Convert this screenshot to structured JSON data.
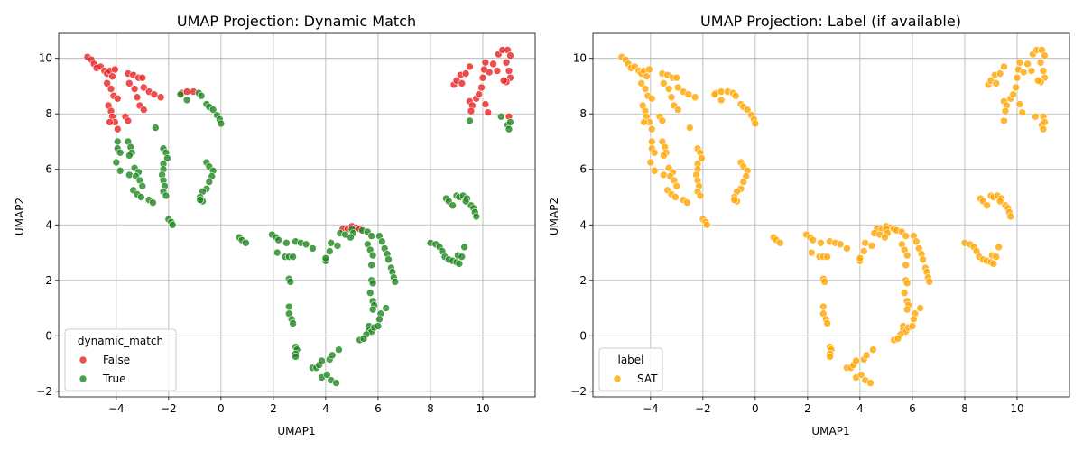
{
  "chart_data": [
    {
      "type": "scatter",
      "title": "UMAP Projection: Dynamic Match",
      "xlabel": "UMAP1",
      "ylabel": "UMAP2",
      "xlim": [
        -6.2,
        12.0
      ],
      "ylim": [
        -2.2,
        10.9
      ],
      "xticks": [
        -4,
        -2,
        0,
        2,
        4,
        6,
        8,
        10
      ],
      "yticks": [
        -2,
        0,
        2,
        4,
        6,
        8,
        10
      ],
      "grid": true,
      "legend": {
        "title": "dynamic_match",
        "position": "lower-left"
      },
      "series": [
        {
          "name": "False",
          "color": "#e82020",
          "points": [
            [
              -5.1,
              10.05
            ],
            [
              -4.95,
              9.95
            ],
            [
              -4.85,
              9.8
            ],
            [
              -4.75,
              9.65
            ],
            [
              -4.6,
              9.7
            ],
            [
              -4.45,
              9.55
            ],
            [
              -4.35,
              9.45
            ],
            [
              -4.25,
              9.55
            ],
            [
              -4.15,
              9.35
            ],
            [
              -4.05,
              9.6
            ],
            [
              -4.35,
              9.1
            ],
            [
              -4.2,
              8.9
            ],
            [
              -4.1,
              8.65
            ],
            [
              -3.95,
              8.55
            ],
            [
              -4.3,
              8.3
            ],
            [
              -4.2,
              8.1
            ],
            [
              -4.15,
              7.9
            ],
            [
              -4.05,
              7.7
            ],
            [
              -4.25,
              7.7
            ],
            [
              -3.95,
              7.45
            ],
            [
              -3.65,
              7.9
            ],
            [
              -3.55,
              7.75
            ],
            [
              -3.55,
              9.45
            ],
            [
              -3.35,
              9.4
            ],
            [
              -3.15,
              9.3
            ],
            [
              -3.0,
              9.3
            ],
            [
              -3.5,
              9.1
            ],
            [
              -3.3,
              8.9
            ],
            [
              -3.2,
              8.6
            ],
            [
              -2.95,
              8.95
            ],
            [
              -2.75,
              8.8
            ],
            [
              -2.55,
              8.7
            ],
            [
              -2.3,
              8.6
            ],
            [
              -3.1,
              8.3
            ],
            [
              -2.95,
              8.15
            ],
            [
              -1.5,
              8.75
            ],
            [
              -1.3,
              8.8
            ],
            [
              -1.05,
              8.8
            ],
            [
              8.9,
              9.05
            ],
            [
              9.0,
              9.2
            ],
            [
              9.15,
              9.4
            ],
            [
              9.35,
              9.45
            ],
            [
              9.5,
              9.7
            ],
            [
              9.2,
              9.1
            ],
            [
              9.5,
              8.45
            ],
            [
              9.6,
              8.3
            ],
            [
              9.55,
              8.1
            ],
            [
              9.75,
              8.55
            ],
            [
              9.85,
              8.7
            ],
            [
              9.95,
              8.95
            ],
            [
              10.0,
              9.3
            ],
            [
              10.05,
              9.6
            ],
            [
              10.1,
              9.85
            ],
            [
              10.25,
              9.5
            ],
            [
              10.4,
              9.8
            ],
            [
              10.55,
              9.55
            ],
            [
              10.6,
              10.15
            ],
            [
              10.75,
              10.3
            ],
            [
              10.95,
              10.3
            ],
            [
              11.05,
              10.1
            ],
            [
              10.9,
              9.85
            ],
            [
              11.0,
              9.55
            ],
            [
              11.05,
              9.3
            ],
            [
              10.9,
              9.15
            ],
            [
              10.1,
              8.35
            ],
            [
              10.2,
              8.05
            ],
            [
              10.8,
              9.2
            ],
            [
              11.0,
              7.9
            ],
            [
              4.65,
              3.85
            ],
            [
              4.85,
              3.85
            ],
            [
              5.0,
              3.95
            ],
            [
              5.15,
              3.9
            ],
            [
              5.3,
              3.85
            ]
          ]
        },
        {
          "name": "True",
          "color": "#1e861e",
          "points": [
            [
              -3.95,
              7.0
            ],
            [
              -3.95,
              6.75
            ],
            [
              -3.85,
              6.6
            ],
            [
              -4.0,
              6.25
            ],
            [
              -3.85,
              5.95
            ],
            [
              -3.55,
              7.0
            ],
            [
              -3.45,
              6.8
            ],
            [
              -3.4,
              6.6
            ],
            [
              -3.5,
              6.5
            ],
            [
              -3.3,
              6.05
            ],
            [
              -3.15,
              5.9
            ],
            [
              -3.5,
              5.8
            ],
            [
              -3.25,
              5.75
            ],
            [
              -3.1,
              5.6
            ],
            [
              -3.0,
              5.4
            ],
            [
              -3.35,
              5.25
            ],
            [
              -3.2,
              5.1
            ],
            [
              -3.05,
              5.0
            ],
            [
              -2.75,
              4.9
            ],
            [
              -2.6,
              4.8
            ],
            [
              -2.5,
              7.5
            ],
            [
              -2.2,
              6.75
            ],
            [
              -2.1,
              6.6
            ],
            [
              -2.05,
              6.4
            ],
            [
              -2.2,
              6.2
            ],
            [
              -2.2,
              6.0
            ],
            [
              -2.25,
              5.8
            ],
            [
              -2.2,
              5.6
            ],
            [
              -2.15,
              5.4
            ],
            [
              -2.2,
              5.2
            ],
            [
              -2.1,
              5.05
            ],
            [
              -2.0,
              4.2
            ],
            [
              -1.9,
              4.1
            ],
            [
              -1.85,
              4.0
            ],
            [
              -1.55,
              8.7
            ],
            [
              -1.3,
              8.5
            ],
            [
              -0.85,
              8.75
            ],
            [
              -0.75,
              8.65
            ],
            [
              -0.55,
              8.35
            ],
            [
              -0.45,
              8.25
            ],
            [
              -0.3,
              8.15
            ],
            [
              -0.15,
              7.95
            ],
            [
              -0.05,
              7.8
            ],
            [
              0.0,
              7.65
            ],
            [
              -0.55,
              6.25
            ],
            [
              -0.45,
              6.1
            ],
            [
              -0.3,
              5.95
            ],
            [
              -0.35,
              5.75
            ],
            [
              -0.45,
              5.55
            ],
            [
              -0.55,
              5.3
            ],
            [
              -0.7,
              5.2
            ],
            [
              -0.8,
              5.0
            ],
            [
              -0.7,
              4.85
            ],
            [
              -0.8,
              4.9
            ],
            [
              0.7,
              3.55
            ],
            [
              0.8,
              3.45
            ],
            [
              0.95,
              3.35
            ],
            [
              1.95,
              3.65
            ],
            [
              2.1,
              3.55
            ],
            [
              2.2,
              3.45
            ],
            [
              2.5,
              3.35
            ],
            [
              2.85,
              3.4
            ],
            [
              3.05,
              3.35
            ],
            [
              3.25,
              3.3
            ],
            [
              3.5,
              3.15
            ],
            [
              2.15,
              3.0
            ],
            [
              2.45,
              2.85
            ],
            [
              2.6,
              2.85
            ],
            [
              2.75,
              2.85
            ],
            [
              2.6,
              2.05
            ],
            [
              2.65,
              1.95
            ],
            [
              2.6,
              1.05
            ],
            [
              2.6,
              0.8
            ],
            [
              2.7,
              0.6
            ],
            [
              2.75,
              0.45
            ],
            [
              2.85,
              -0.4
            ],
            [
              2.9,
              -0.5
            ],
            [
              2.85,
              -0.65
            ],
            [
              2.85,
              -0.75
            ],
            [
              3.5,
              -1.15
            ],
            [
              3.65,
              -1.15
            ],
            [
              3.75,
              -1.05
            ],
            [
              3.85,
              -0.9
            ],
            [
              4.15,
              -0.85
            ],
            [
              4.25,
              -0.7
            ],
            [
              3.85,
              -1.5
            ],
            [
              4.05,
              -1.4
            ],
            [
              4.2,
              -1.6
            ],
            [
              4.4,
              -1.7
            ],
            [
              4.5,
              -0.5
            ],
            [
              4.0,
              2.7
            ],
            [
              4.0,
              2.8
            ],
            [
              4.15,
              3.05
            ],
            [
              4.2,
              3.35
            ],
            [
              4.45,
              3.25
            ],
            [
              4.55,
              3.7
            ],
            [
              4.75,
              3.65
            ],
            [
              5.0,
              3.85
            ],
            [
              5.05,
              3.7
            ],
            [
              4.95,
              3.55
            ],
            [
              5.4,
              3.8
            ],
            [
              5.6,
              3.75
            ],
            [
              5.75,
              3.6
            ],
            [
              5.6,
              3.3
            ],
            [
              5.7,
              3.1
            ],
            [
              5.8,
              2.9
            ],
            [
              5.75,
              2.55
            ],
            [
              5.75,
              2.0
            ],
            [
              5.8,
              1.9
            ],
            [
              5.7,
              1.55
            ],
            [
              5.8,
              1.25
            ],
            [
              5.85,
              1.1
            ],
            [
              5.8,
              0.95
            ],
            [
              5.65,
              0.35
            ],
            [
              5.65,
              0.2
            ],
            [
              5.75,
              0.15
            ],
            [
              5.55,
              0.05
            ],
            [
              5.85,
              0.3
            ],
            [
              5.3,
              -0.15
            ],
            [
              5.45,
              -0.1
            ],
            [
              6.05,
              3.6
            ],
            [
              6.15,
              3.4
            ],
            [
              6.25,
              3.15
            ],
            [
              6.35,
              2.95
            ],
            [
              6.4,
              2.75
            ],
            [
              6.5,
              2.45
            ],
            [
              6.55,
              2.3
            ],
            [
              6.6,
              2.1
            ],
            [
              6.65,
              1.95
            ],
            [
              6.3,
              1.0
            ],
            [
              6.1,
              0.8
            ],
            [
              6.05,
              0.6
            ],
            [
              6.0,
              0.35
            ],
            [
              8.0,
              3.35
            ],
            [
              8.2,
              3.3
            ],
            [
              8.35,
              3.2
            ],
            [
              8.45,
              3.05
            ],
            [
              8.55,
              2.85
            ],
            [
              8.7,
              2.75
            ],
            [
              8.85,
              2.7
            ],
            [
              9.0,
              2.65
            ],
            [
              9.1,
              2.6
            ],
            [
              9.05,
              2.9
            ],
            [
              9.2,
              2.85
            ],
            [
              9.3,
              3.2
            ],
            [
              8.6,
              4.95
            ],
            [
              8.7,
              4.85
            ],
            [
              8.85,
              4.7
            ],
            [
              9.0,
              5.05
            ],
            [
              9.1,
              5.0
            ],
            [
              9.25,
              5.05
            ],
            [
              9.4,
              4.95
            ],
            [
              9.55,
              4.7
            ],
            [
              9.65,
              4.6
            ],
            [
              9.7,
              4.45
            ],
            [
              9.75,
              4.3
            ],
            [
              9.35,
              4.85
            ],
            [
              9.5,
              7.75
            ],
            [
              10.7,
              7.9
            ],
            [
              10.95,
              7.6
            ],
            [
              11.0,
              7.45
            ],
            [
              11.05,
              7.7
            ]
          ]
        }
      ]
    },
    {
      "type": "scatter",
      "title": "UMAP Projection: Label (if available)",
      "xlabel": "UMAP1",
      "ylabel": "UMAP2",
      "xlim": [
        -6.2,
        12.0
      ],
      "ylim": [
        -2.2,
        10.9
      ],
      "xticks": [
        -4,
        -2,
        0,
        2,
        4,
        6,
        8,
        10
      ],
      "yticks": [
        -2,
        0,
        2,
        4,
        6,
        8,
        10
      ],
      "grid": true,
      "legend": {
        "title": "label",
        "position": "lower-left"
      },
      "series": [
        {
          "name": "SAT",
          "color": "#ffa500",
          "all_points": true
        }
      ]
    }
  ]
}
